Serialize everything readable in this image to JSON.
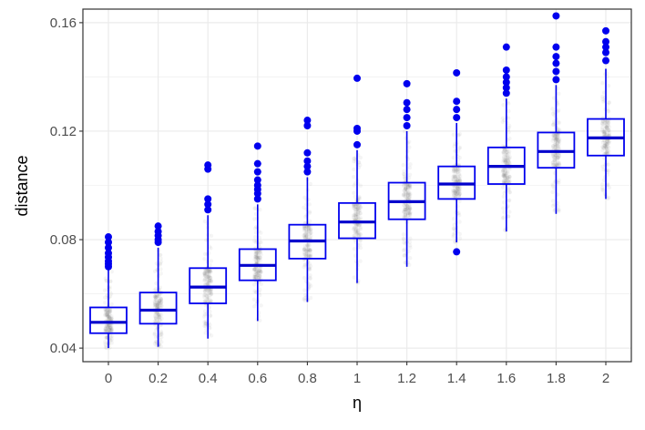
{
  "chart_data": {
    "type": "boxplot",
    "xlabel": "η",
    "ylabel": "distance",
    "ylim": [
      0.035,
      0.165
    ],
    "yticks": [
      0.04,
      0.08,
      0.12,
      0.16
    ],
    "ytick_labels": [
      "0.04",
      "0.08",
      "0.12",
      "0.16"
    ],
    "grid": true,
    "categories": [
      "0",
      "0.2",
      "0.4",
      "0.6",
      "0.8",
      "1",
      "1.2",
      "1.4",
      "1.6",
      "1.8",
      "2"
    ],
    "boxes": [
      {
        "x": "0",
        "whisker_low": 0.04,
        "q1": 0.0455,
        "median": 0.0495,
        "q3": 0.055,
        "whisker_high": 0.069,
        "outliers": [
          0.07,
          0.071,
          0.072,
          0.0735,
          0.075,
          0.077,
          0.079,
          0.081
        ]
      },
      {
        "x": "0.2",
        "whisker_low": 0.0405,
        "q1": 0.049,
        "median": 0.054,
        "q3": 0.0605,
        "whisker_high": 0.077,
        "outliers": [
          0.079,
          0.08,
          0.0815,
          0.083,
          0.085
        ]
      },
      {
        "x": "0.4",
        "whisker_low": 0.0435,
        "q1": 0.0565,
        "median": 0.0625,
        "q3": 0.0695,
        "whisker_high": 0.089,
        "outliers": [
          0.091,
          0.093,
          0.095,
          0.106,
          0.1075
        ]
      },
      {
        "x": "0.6",
        "whisker_low": 0.05,
        "q1": 0.065,
        "median": 0.0705,
        "q3": 0.0765,
        "whisker_high": 0.093,
        "outliers": [
          0.095,
          0.097,
          0.0985,
          0.1,
          0.102,
          0.105,
          0.108,
          0.1145
        ]
      },
      {
        "x": "0.8",
        "whisker_low": 0.057,
        "q1": 0.073,
        "median": 0.0795,
        "q3": 0.0855,
        "whisker_high": 0.103,
        "outliers": [
          0.105,
          0.107,
          0.109,
          0.112,
          0.122,
          0.124
        ]
      },
      {
        "x": "1",
        "whisker_low": 0.064,
        "q1": 0.0805,
        "median": 0.0865,
        "q3": 0.0935,
        "whisker_high": 0.113,
        "outliers": [
          0.115,
          0.12,
          0.121,
          0.1395
        ]
      },
      {
        "x": "1.2",
        "whisker_low": 0.07,
        "q1": 0.0875,
        "median": 0.094,
        "q3": 0.101,
        "whisker_high": 0.12,
        "outliers": [
          0.122,
          0.125,
          0.128,
          0.1305,
          0.1375
        ]
      },
      {
        "x": "1.4",
        "whisker_low": 0.079,
        "q1": 0.095,
        "median": 0.1005,
        "q3": 0.107,
        "whisker_high": 0.123,
        "outliers": [
          0.0755,
          0.125,
          0.128,
          0.131,
          0.1415
        ]
      },
      {
        "x": "1.6",
        "whisker_low": 0.083,
        "q1": 0.1005,
        "median": 0.107,
        "q3": 0.114,
        "whisker_high": 0.132,
        "outliers": [
          0.134,
          0.136,
          0.138,
          0.14,
          0.1425,
          0.151
        ]
      },
      {
        "x": "1.8",
        "whisker_low": 0.0895,
        "q1": 0.1065,
        "median": 0.1125,
        "q3": 0.1195,
        "whisker_high": 0.137,
        "outliers": [
          0.139,
          0.142,
          0.145,
          0.1475,
          0.151,
          0.1625
        ]
      },
      {
        "x": "2",
        "whisker_low": 0.095,
        "q1": 0.111,
        "median": 0.1175,
        "q3": 0.1245,
        "whisker_high": 0.143,
        "outliers": [
          0.146,
          0.149,
          0.151,
          0.153,
          0.157
        ]
      }
    ],
    "colors": {
      "box": "#0000ee",
      "median": "#0000cc",
      "outlier": "#0000ee",
      "jitter": "#555555",
      "grid": "#ebebeb",
      "panel_border": "#333333"
    }
  }
}
